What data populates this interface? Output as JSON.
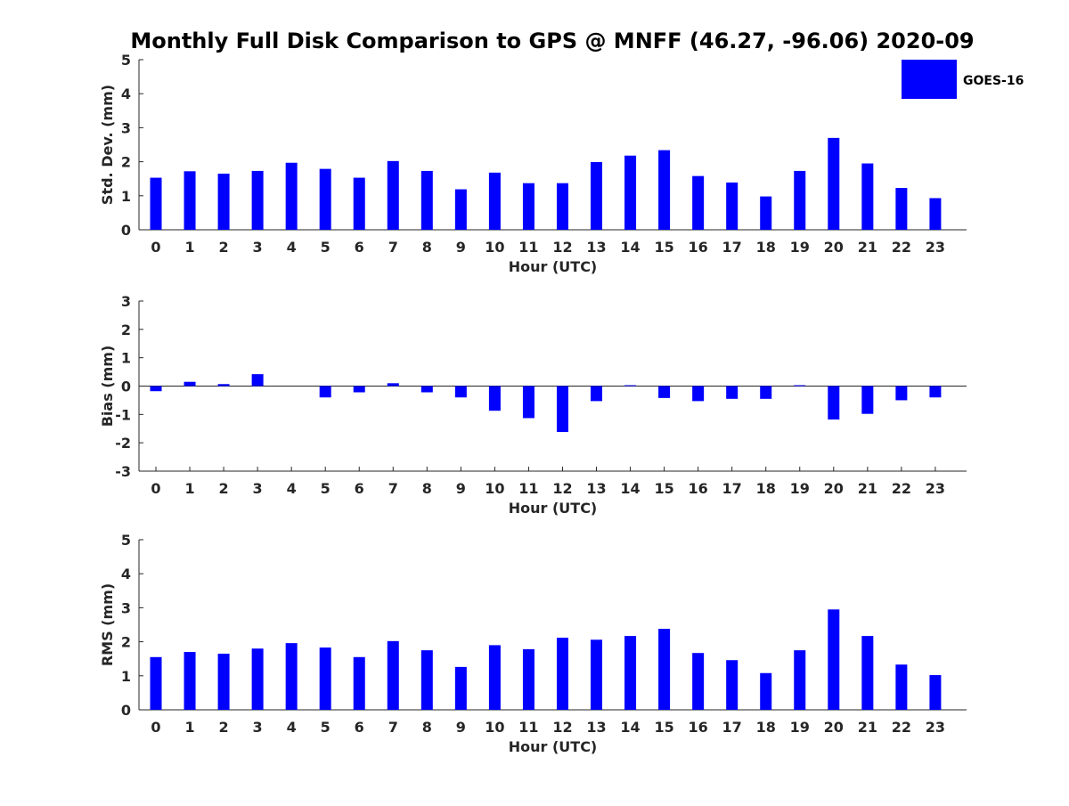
{
  "title": "Monthly Full Disk Comparison to GPS @ MNFF (46.27, -96.06) 2020-09",
  "legend": {
    "label": "GOES-16",
    "color": "#0000ff"
  },
  "chart_data": [
    {
      "type": "bar",
      "name": "std_dev",
      "xlabel": "Hour (UTC)",
      "ylabel": "Std. Dev. (mm)",
      "categories": [
        "0",
        "1",
        "2",
        "3",
        "4",
        "5",
        "6",
        "7",
        "8",
        "9",
        "10",
        "11",
        "12",
        "13",
        "14",
        "15",
        "16",
        "17",
        "18",
        "19",
        "20",
        "21",
        "22",
        "23"
      ],
      "ylim": [
        0,
        5
      ],
      "yticks": [
        "0",
        "1",
        "2",
        "3",
        "4",
        "5"
      ],
      "series": [
        {
          "name": "GOES-16",
          "color": "#0000ff",
          "values": [
            1.53,
            1.72,
            1.65,
            1.73,
            1.97,
            1.79,
            1.53,
            2.02,
            1.73,
            1.19,
            1.68,
            1.37,
            1.37,
            1.99,
            2.18,
            2.34,
            1.58,
            1.39,
            0.98,
            1.73,
            2.7,
            1.95,
            1.23,
            0.93
          ]
        }
      ]
    },
    {
      "type": "bar",
      "name": "bias",
      "xlabel": "Hour (UTC)",
      "ylabel": "Bias (mm)",
      "categories": [
        "0",
        "1",
        "2",
        "3",
        "4",
        "5",
        "6",
        "7",
        "8",
        "9",
        "10",
        "11",
        "12",
        "13",
        "14",
        "15",
        "16",
        "17",
        "18",
        "19",
        "20",
        "21",
        "22",
        "23"
      ],
      "ylim": [
        -3,
        3
      ],
      "yticks": [
        "-3",
        "-2",
        "-1",
        "0",
        "1",
        "2",
        "3"
      ],
      "series": [
        {
          "name": "GOES-16",
          "color": "#0000ff",
          "values": [
            -0.18,
            0.15,
            0.07,
            0.42,
            0.0,
            -0.4,
            -0.22,
            0.1,
            -0.22,
            -0.4,
            -0.87,
            -1.13,
            -1.62,
            -0.53,
            0.03,
            -0.42,
            -0.53,
            -0.45,
            -0.45,
            0.03,
            -1.18,
            -0.98,
            -0.5,
            -0.4
          ]
        }
      ]
    },
    {
      "type": "bar",
      "name": "rms",
      "xlabel": "Hour (UTC)",
      "ylabel": "RMS (mm)",
      "categories": [
        "0",
        "1",
        "2",
        "3",
        "4",
        "5",
        "6",
        "7",
        "8",
        "9",
        "10",
        "11",
        "12",
        "13",
        "14",
        "15",
        "16",
        "17",
        "18",
        "19",
        "20",
        "21",
        "22",
        "23"
      ],
      "ylim": [
        0,
        5
      ],
      "yticks": [
        "0",
        "1",
        "2",
        "3",
        "4",
        "5"
      ],
      "series": [
        {
          "name": "GOES-16",
          "color": "#0000ff",
          "values": [
            1.55,
            1.7,
            1.65,
            1.8,
            1.96,
            1.83,
            1.55,
            2.02,
            1.75,
            1.26,
            1.9,
            1.78,
            2.12,
            2.06,
            2.17,
            2.38,
            1.67,
            1.46,
            1.08,
            1.75,
            2.95,
            2.17,
            1.33,
            1.02
          ]
        }
      ]
    }
  ]
}
